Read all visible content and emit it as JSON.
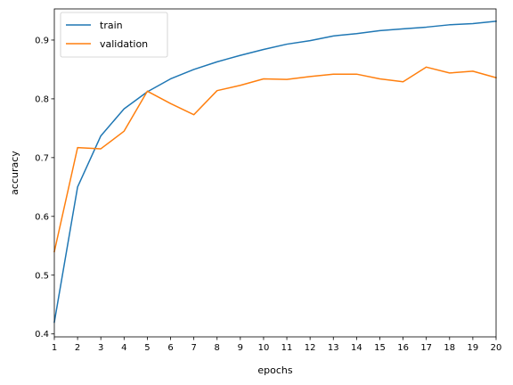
{
  "chart_data": {
    "type": "line",
    "title": "",
    "xlabel": "epochs",
    "ylabel": "accuracy",
    "x": [
      1,
      2,
      3,
      4,
      5,
      6,
      7,
      8,
      9,
      10,
      11,
      12,
      13,
      14,
      15,
      16,
      17,
      18,
      19,
      20
    ],
    "xlim": [
      1,
      20
    ],
    "ylim": [
      0.395,
      0.953
    ],
    "xticks": [
      "1",
      "2",
      "3",
      "4",
      "5",
      "6",
      "7",
      "8",
      "9",
      "10",
      "11",
      "12",
      "13",
      "14",
      "15",
      "16",
      "17",
      "18",
      "19",
      "20"
    ],
    "yticks": [
      "0.4",
      "0.5",
      "0.6",
      "0.7",
      "0.8",
      "0.9"
    ],
    "grid": false,
    "legend_position": "top-left",
    "series": [
      {
        "name": "train",
        "color": "#1f77b4",
        "values": [
          0.42,
          0.65,
          0.737,
          0.783,
          0.812,
          0.834,
          0.85,
          0.863,
          0.874,
          0.884,
          0.893,
          0.899,
          0.907,
          0.911,
          0.916,
          0.919,
          0.922,
          0.926,
          0.928,
          0.932
        ]
      },
      {
        "name": "validation",
        "color": "#ff7f0e",
        "values": [
          0.54,
          0.717,
          0.715,
          0.745,
          0.813,
          0.792,
          0.773,
          0.814,
          0.823,
          0.834,
          0.833,
          0.838,
          0.842,
          0.842,
          0.834,
          0.829,
          0.854,
          0.844,
          0.847,
          0.836
        ]
      }
    ]
  }
}
